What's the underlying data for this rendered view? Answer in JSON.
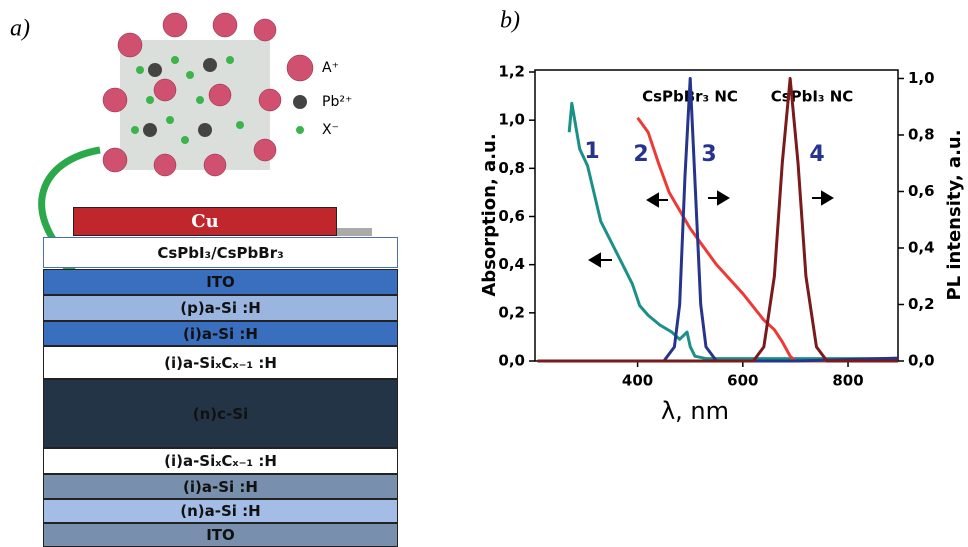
{
  "panel_a": {
    "label": "a)",
    "legend": [
      "A⁺",
      "Pb²⁺",
      "X⁻"
    ],
    "layers": [
      "Cu",
      "CsPbI₃/CsPbBr₃",
      "ITO",
      "(p)a-Si :H",
      "(i)a-Si :H",
      "(i)a-SiₓCₓ₋₁ :H",
      "(n)c-Si",
      "(i)a-SiₓCₓ₋₁ :H",
      "(i)a-Si :H",
      "(n)a-Si :H",
      "ITO"
    ]
  },
  "chart_data": {
    "type": "line",
    "panel_label": "b)",
    "x_label": "λ, nm",
    "y_label": "Absorption, a.u.",
    "y2_label": "PL intensity, a.u.",
    "annotations": [
      "CsPbBr₃ NC",
      "CsPbI₃ NC"
    ],
    "xlim": [
      205,
      895
    ],
    "xticks": [
      400,
      600,
      800
    ],
    "ylim": [
      0,
      1.2
    ],
    "yticks": [
      {
        "value": 0,
        "label": "0,0"
      },
      {
        "value": 0.2,
        "label": "0,2"
      },
      {
        "value": 0.4,
        "label": "0,4"
      },
      {
        "value": 0.6,
        "label": "0,6"
      },
      {
        "value": 0.8,
        "label": "0,8"
      },
      {
        "value": 1.0,
        "label": "1,0"
      },
      {
        "value": 1.2,
        "label": "1,2"
      }
    ],
    "y2lim": [
      0,
      1.03
    ],
    "y2ticks": [
      {
        "value": 0,
        "label": "0,0"
      },
      {
        "value": 0.2,
        "label": "0,2"
      },
      {
        "value": 0.4,
        "label": "0,4"
      },
      {
        "value": 0.6,
        "label": "0,6"
      },
      {
        "value": 0.8,
        "label": "0,8"
      },
      {
        "value": 1.0,
        "label": "1,0"
      }
    ],
    "series": [
      {
        "name": "1",
        "color": "#1a9088",
        "x": [
          270,
          275,
          290,
          305,
          330,
          367,
          390,
          404,
          420,
          442,
          465,
          480,
          494,
          500,
          509,
          530,
          600,
          700,
          895
        ],
        "values": [
          0.95,
          1.07,
          0.88,
          0.81,
          0.58,
          0.42,
          0.32,
          0.23,
          0.19,
          0.15,
          0.12,
          0.09,
          0.12,
          0.06,
          0.02,
          0.01,
          0.01,
          0.01,
          0.01
        ]
      },
      {
        "name": "2",
        "color": "#ee3a36",
        "x": [
          400,
          420,
          440,
          460,
          500,
          550,
          600,
          640,
          660,
          675,
          690,
          700,
          895
        ],
        "values": [
          1.01,
          0.95,
          0.82,
          0.7,
          0.55,
          0.4,
          0.28,
          0.17,
          0.13,
          0.08,
          0.02,
          0.0,
          0.0
        ]
      },
      {
        "name": "3",
        "color": "#27348b",
        "axis": "y2",
        "x": [
          210,
          450,
          470,
          480,
          490,
          500,
          510,
          520,
          530,
          550,
          700,
          895
        ],
        "values": [
          0,
          0,
          0.05,
          0.2,
          0.65,
          1.0,
          0.6,
          0.2,
          0.05,
          0,
          0,
          0.01
        ]
      },
      {
        "name": "4",
        "color": "#7a1a1a",
        "axis": "y2",
        "x": [
          210,
          620,
          640,
          660,
          675,
          690,
          705,
          720,
          740,
          760,
          895
        ],
        "values": [
          0,
          0,
          0.05,
          0.3,
          0.7,
          1.0,
          0.7,
          0.3,
          0.05,
          0,
          0
        ]
      }
    ]
  }
}
